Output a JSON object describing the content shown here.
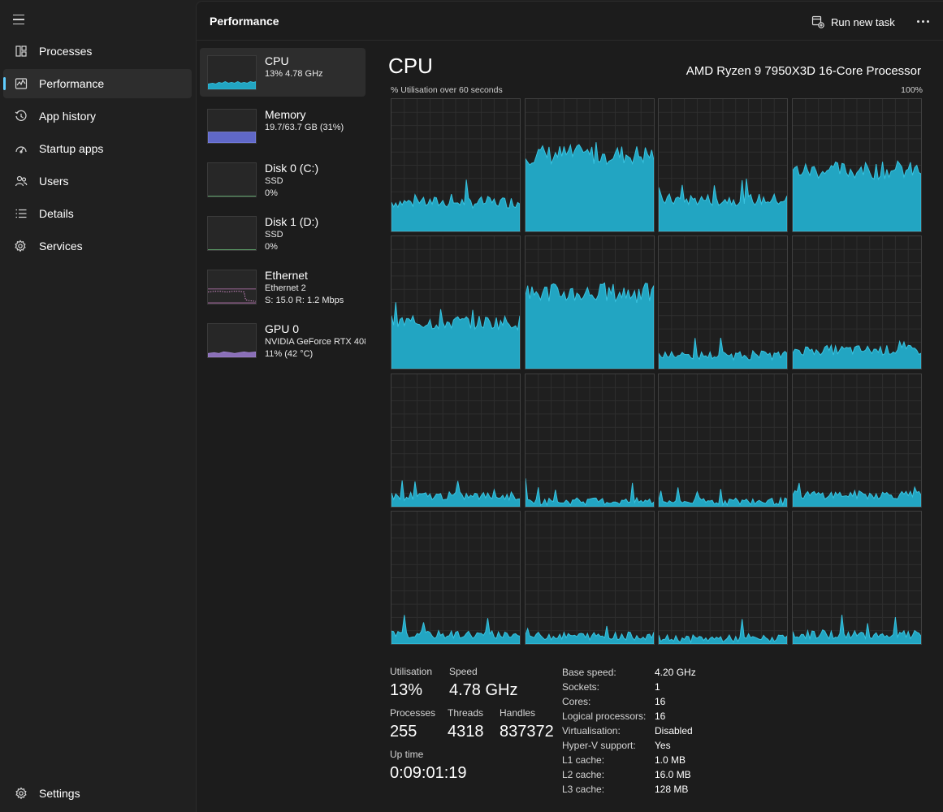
{
  "nav": {
    "items": [
      {
        "label": "Processes",
        "icon": "processes-icon"
      },
      {
        "label": "Performance",
        "icon": "performance-icon",
        "active": true
      },
      {
        "label": "App history",
        "icon": "app-history-icon"
      },
      {
        "label": "Startup apps",
        "icon": "startup-apps-icon"
      },
      {
        "label": "Users",
        "icon": "users-icon"
      },
      {
        "label": "Details",
        "icon": "details-icon"
      },
      {
        "label": "Services",
        "icon": "services-icon"
      }
    ],
    "settings_label": "Settings"
  },
  "header": {
    "title": "Performance",
    "run_new_task": "Run new task"
  },
  "resources": [
    {
      "name": "CPU",
      "sub1": "13%  4.78 GHz",
      "sub2": "",
      "active": true
    },
    {
      "name": "Memory",
      "sub1": "19.7/63.7 GB (31%)",
      "sub2": ""
    },
    {
      "name": "Disk 0 (C:)",
      "sub1": "SSD",
      "sub2": "0%"
    },
    {
      "name": "Disk 1 (D:)",
      "sub1": "SSD",
      "sub2": "0%"
    },
    {
      "name": "Ethernet",
      "sub1": "Ethernet 2",
      "sub2": "S: 15.0  R: 1.2 Mbps"
    },
    {
      "name": "GPU 0",
      "sub1": "NVIDIA GeForce RTX 408",
      "sub2": "11%  (42 °C)"
    }
  ],
  "cpu": {
    "title": "CPU",
    "model": "AMD Ryzen 9 7950X3D 16-Core Processor",
    "graph_label": "% Utilisation over 60 seconds",
    "graph_max": "100%",
    "graph_color": "#22a5c2",
    "graph_line_color": "#38c3e0",
    "core_levels": [
      0.22,
      0.58,
      0.24,
      0.46,
      0.35,
      0.57,
      0.1,
      0.14,
      0.08,
      0.04,
      0.04,
      0.09,
      0.07,
      0.06,
      0.04,
      0.07
    ]
  },
  "stats": {
    "utilisation_label": "Utilisation",
    "utilisation_value": "13%",
    "speed_label": "Speed",
    "speed_value": "4.78 GHz",
    "processes_label": "Processes",
    "processes_value": "255",
    "threads_label": "Threads",
    "threads_value": "4318",
    "handles_label": "Handles",
    "handles_value": "837372",
    "uptime_label": "Up time",
    "uptime_value": "0:09:01:19"
  },
  "specs": [
    {
      "key": "Base speed:",
      "value": "4.20 GHz"
    },
    {
      "key": "Sockets:",
      "value": "1"
    },
    {
      "key": "Cores:",
      "value": "16"
    },
    {
      "key": "Logical processors:",
      "value": "16"
    },
    {
      "key": "Virtualisation:",
      "value": "Disabled"
    },
    {
      "key": "Hyper-V support:",
      "value": "Yes"
    },
    {
      "key": "L1 cache:",
      "value": "1.0 MB"
    },
    {
      "key": "L2 cache:",
      "value": "16.0 MB"
    },
    {
      "key": "L3 cache:",
      "value": "128 MB"
    }
  ]
}
